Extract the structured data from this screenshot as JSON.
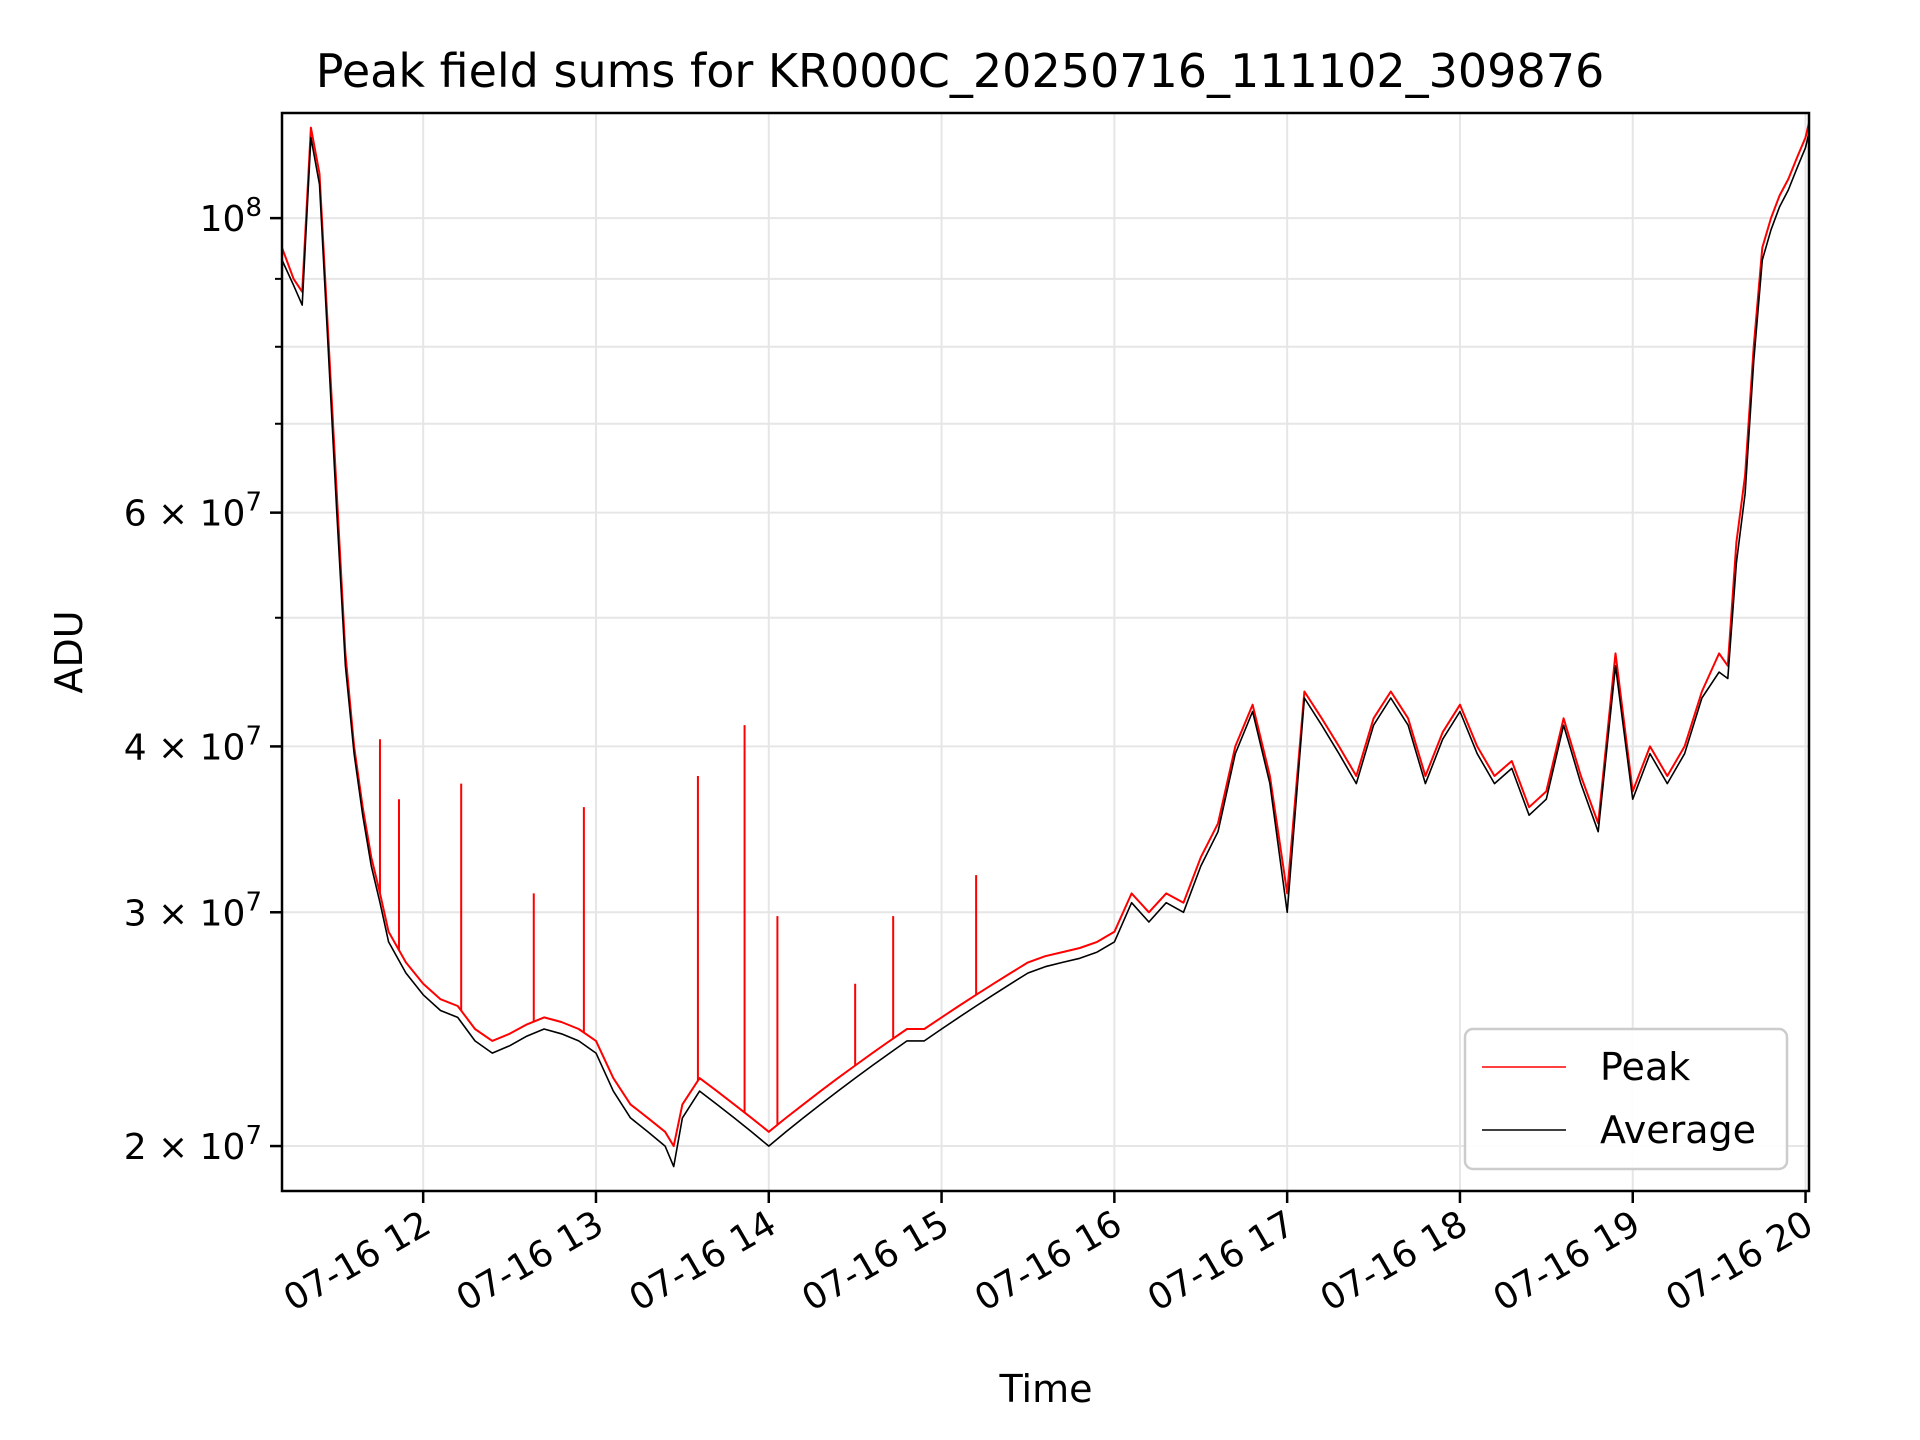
{
  "chart_data": {
    "type": "line",
    "title": "Peak field sums for KR000C_20250716_111102_309876",
    "xlabel": "Time",
    "ylabel": "ADU",
    "yscale": "log",
    "ylim": [
      18500000,
      120000000
    ],
    "xlim": [
      "07-16 11:11",
      "07-16 20:01"
    ],
    "grid": true,
    "legend_position": "lower right",
    "x_ticks": [
      "07-16 12",
      "07-16 13",
      "07-16 14",
      "07-16 15",
      "07-16 16",
      "07-16 17",
      "07-16 18",
      "07-16 19",
      "07-16 20"
    ],
    "y_ticks": [
      {
        "value": 20000000,
        "base": "2 × 10",
        "exp": "7"
      },
      {
        "value": 30000000,
        "base": "3 × 10",
        "exp": "7"
      },
      {
        "value": 40000000,
        "base": "4 × 10",
        "exp": "7"
      },
      {
        "value": 60000000,
        "base": "6 × 10",
        "exp": "7"
      },
      {
        "value": 100000000,
        "base": "10",
        "exp": "8"
      }
    ],
    "x_hours": [
      11.183,
      11.25,
      11.3,
      11.35,
      11.4,
      11.45,
      11.5,
      11.55,
      11.6,
      11.65,
      11.7,
      11.75,
      11.8,
      11.9,
      12.0,
      12.1,
      12.2,
      12.3,
      12.4,
      12.5,
      12.6,
      12.7,
      12.8,
      12.9,
      13.0,
      13.1,
      13.2,
      13.3,
      13.4,
      13.45,
      13.5,
      13.6,
      13.7,
      13.8,
      13.9,
      14.0,
      14.1,
      14.2,
      14.3,
      14.4,
      14.5,
      14.6,
      14.7,
      14.8,
      14.9,
      15.0,
      15.1,
      15.2,
      15.3,
      15.4,
      15.5,
      15.6,
      15.7,
      15.8,
      15.9,
      16.0,
      16.1,
      16.2,
      16.3,
      16.4,
      16.5,
      16.6,
      16.7,
      16.8,
      16.9,
      17.0,
      17.1,
      17.2,
      17.3,
      17.4,
      17.5,
      17.6,
      17.7,
      17.8,
      17.9,
      18.0,
      18.1,
      18.2,
      18.3,
      18.4,
      18.5,
      18.6,
      18.7,
      18.8,
      18.9,
      19.0,
      19.1,
      19.2,
      19.3,
      19.4,
      19.5,
      19.55,
      19.6,
      19.65,
      19.7,
      19.75,
      19.8,
      19.85,
      19.9,
      19.95,
      20.0,
      20.02
    ],
    "series": [
      {
        "name": "Peak",
        "color": "#ff0000",
        "values": [
          95000000,
          90000000,
          88000000,
          117000000,
          108000000,
          82000000,
          62000000,
          47000000,
          40000000,
          36000000,
          33000000,
          31000000,
          29000000,
          27500000,
          26500000,
          25800000,
          25500000,
          24500000,
          24000000,
          24300000,
          24700000,
          25000000,
          24800000,
          24500000,
          24000000,
          22500000,
          21500000,
          21000000,
          20500000,
          20000000,
          21500000,
          22500000,
          22000000,
          21500000,
          21000000,
          20500000,
          21000000,
          21500000,
          22000000,
          22500000,
          23000000,
          23500000,
          24000000,
          24500000,
          24500000,
          25000000,
          25500000,
          26000000,
          26500000,
          27000000,
          27500000,
          27800000,
          28000000,
          28200000,
          28500000,
          29000000,
          31000000,
          30000000,
          31000000,
          30500000,
          33000000,
          35000000,
          40000000,
          43000000,
          38000000,
          31000000,
          44000000,
          42000000,
          40000000,
          38000000,
          42000000,
          44000000,
          42000000,
          38000000,
          41000000,
          43000000,
          40000000,
          38000000,
          39000000,
          36000000,
          37000000,
          42000000,
          38000000,
          35000000,
          47000000,
          37000000,
          40000000,
          38000000,
          40000000,
          44000000,
          47000000,
          46000000,
          57000000,
          64000000,
          80000000,
          95000000,
          100000000,
          104000000,
          107000000,
          111000000,
          115000000,
          118000000
        ]
      },
      {
        "name": "Average",
        "color": "#000000",
        "values": [
          93000000,
          89000000,
          86000000,
          115000000,
          106000000,
          80000000,
          60000000,
          46000000,
          39500000,
          35500000,
          32500000,
          30500000,
          28500000,
          27000000,
          26000000,
          25300000,
          25000000,
          24000000,
          23500000,
          23800000,
          24200000,
          24500000,
          24300000,
          24000000,
          23500000,
          22000000,
          21000000,
          20500000,
          20000000,
          19300000,
          21000000,
          22000000,
          21500000,
          21000000,
          20500000,
          20000000,
          20500000,
          21000000,
          21500000,
          22000000,
          22500000,
          23000000,
          23500000,
          24000000,
          24000000,
          24500000,
          25000000,
          25500000,
          26000000,
          26500000,
          27000000,
          27300000,
          27500000,
          27700000,
          28000000,
          28500000,
          30500000,
          29500000,
          30500000,
          30000000,
          32500000,
          34500000,
          39500000,
          42500000,
          37500000,
          30000000,
          43500000,
          41500000,
          39500000,
          37500000,
          41500000,
          43500000,
          41500000,
          37500000,
          40500000,
          42500000,
          39500000,
          37500000,
          38500000,
          35500000,
          36500000,
          41500000,
          37500000,
          34500000,
          46000000,
          36500000,
          39500000,
          37500000,
          39500000,
          43500000,
          45500000,
          45000000,
          55000000,
          62000000,
          78000000,
          93000000,
          98000000,
          102000000,
          105000000,
          109000000,
          113000000,
          116000000
        ]
      }
    ],
    "spikes": [
      {
        "hour": 11.75,
        "value": 40500000
      },
      {
        "hour": 11.86,
        "value": 36500000
      },
      {
        "hour": 12.22,
        "value": 37500000
      },
      {
        "hour": 12.64,
        "value": 31000000
      },
      {
        "hour": 12.93,
        "value": 36000000
      },
      {
        "hour": 13.59,
        "value": 38000000
      },
      {
        "hour": 13.86,
        "value": 41500000
      },
      {
        "hour": 14.05,
        "value": 29800000
      },
      {
        "hour": 14.5,
        "value": 26500000
      },
      {
        "hour": 14.72,
        "value": 29800000
      },
      {
        "hour": 15.2,
        "value": 32000000
      }
    ]
  }
}
